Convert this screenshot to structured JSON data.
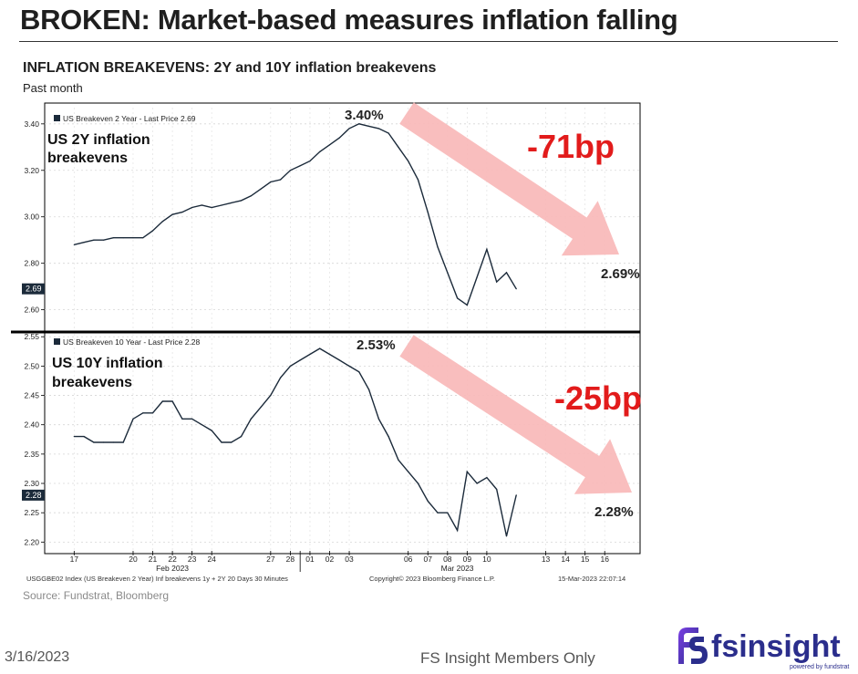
{
  "header": {
    "title": "BROKEN: Market-based measures inflation falling",
    "chart_title": "INFLATION BREAKEVENS: 2Y and 10Y inflation breakevens",
    "chart_subtitle": "Past month"
  },
  "footer": {
    "source": "Source: Fundstrat, Bloomberg",
    "date": "3/16/2023",
    "members": "FS Insight Members Only",
    "logo_text": "fsinsight",
    "logo_tagline": "powered by fundstrat"
  },
  "bloomberg": {
    "footer_left": "USGGBE02 Index (US Breakeven 2 Year) Inf breakevens 1y + 2Y 20 Days 30 Minutes",
    "footer_center": "Copyright© 2023 Bloomberg Finance L.P.",
    "footer_right": "15-Mar-2023 22:07:14"
  },
  "colors": {
    "line": "#1b2a3a",
    "arrow": "#f8b8b8",
    "annotation_red": "#e21b1b",
    "frame": "#000000"
  },
  "chart_data": [
    {
      "type": "line",
      "legend": "US Breakeven 2 Year - Last Price 2.69",
      "label_top": "US 2Y inflation",
      "label_bottom": "breakevens",
      "peak_label": "3.40%",
      "change_label": "-71bp",
      "last_label": "2.69%",
      "last_price_tag": "2.69",
      "ylim": [
        2.52,
        3.47
      ],
      "yticks": [
        "3.40",
        "3.20",
        "3.00",
        "2.80",
        "2.60"
      ],
      "x_days": [
        0,
        0.5,
        1,
        1.5,
        2,
        2.5,
        3,
        3.5,
        4,
        4.5,
        5,
        5.5,
        6,
        6.5,
        7,
        7.5,
        8,
        8.5,
        9,
        9.5,
        10,
        10.5,
        11,
        11.5,
        12,
        12.5,
        13,
        13.5,
        14,
        14.5,
        15,
        15.5,
        16,
        16.5,
        17,
        17.5,
        18,
        18.5,
        19,
        19.5,
        20,
        20.5,
        21,
        21.5,
        22,
        22.5
      ],
      "values": [
        2.88,
        2.89,
        2.9,
        2.9,
        2.91,
        2.91,
        2.91,
        2.91,
        2.94,
        2.98,
        3.01,
        3.02,
        3.04,
        3.05,
        3.04,
        3.05,
        3.06,
        3.07,
        3.09,
        3.12,
        3.15,
        3.16,
        3.2,
        3.22,
        3.24,
        3.28,
        3.31,
        3.34,
        3.38,
        3.4,
        3.39,
        3.38,
        3.36,
        3.3,
        3.24,
        3.16,
        3.02,
        2.87,
        2.76,
        2.65,
        2.62,
        2.74,
        2.86,
        2.72,
        2.76,
        2.69
      ]
    },
    {
      "type": "line",
      "legend": "US Breakeven 10 Year - Last Price 2.28",
      "label_top": "US 10Y inflation",
      "label_bottom": "breakevens",
      "peak_label": "2.53%",
      "change_label": "-25bp",
      "last_label": "2.28%",
      "last_price_tag": "2.28",
      "ylim": [
        2.185,
        2.555
      ],
      "yticks": [
        "2.55",
        "2.50",
        "2.45",
        "2.40",
        "2.35",
        "2.30",
        "2.25",
        "2.20"
      ],
      "x_days": [
        0,
        0.5,
        1,
        1.5,
        2,
        2.5,
        3,
        3.5,
        4,
        4.5,
        5,
        5.5,
        6,
        6.5,
        7,
        7.5,
        8,
        8.5,
        9,
        9.5,
        10,
        10.5,
        11,
        11.5,
        12,
        12.5,
        13,
        13.5,
        14,
        14.5,
        15,
        15.5,
        16,
        16.5,
        17,
        17.5,
        18,
        18.5,
        19,
        19.5,
        20,
        20.5,
        21,
        21.5,
        22,
        22.5
      ],
      "values": [
        2.38,
        2.38,
        2.37,
        2.37,
        2.37,
        2.37,
        2.41,
        2.42,
        2.42,
        2.44,
        2.44,
        2.41,
        2.41,
        2.4,
        2.39,
        2.37,
        2.37,
        2.38,
        2.41,
        2.43,
        2.45,
        2.48,
        2.5,
        2.51,
        2.52,
        2.53,
        2.52,
        2.51,
        2.5,
        2.49,
        2.46,
        2.41,
        2.38,
        2.34,
        2.32,
        2.3,
        2.27,
        2.25,
        2.25,
        2.22,
        2.32,
        2.3,
        2.31,
        2.29,
        2.21,
        2.28
      ]
    }
  ],
  "x_axis": {
    "ticks": [
      "17",
      "20",
      "21",
      "22",
      "23",
      "24",
      "27",
      "28",
      "01",
      "02",
      "03",
      "06",
      "07",
      "08",
      "09",
      "10",
      "13",
      "14",
      "15",
      "16"
    ],
    "tick_days": [
      0,
      3,
      4,
      5,
      6,
      7,
      10,
      11,
      12,
      13,
      14,
      17,
      18,
      19,
      20,
      21,
      24,
      25,
      26,
      27
    ],
    "month_labels": [
      "Feb 2023",
      "Mar 2023"
    ],
    "month_days": [
      5,
      19.5
    ]
  }
}
